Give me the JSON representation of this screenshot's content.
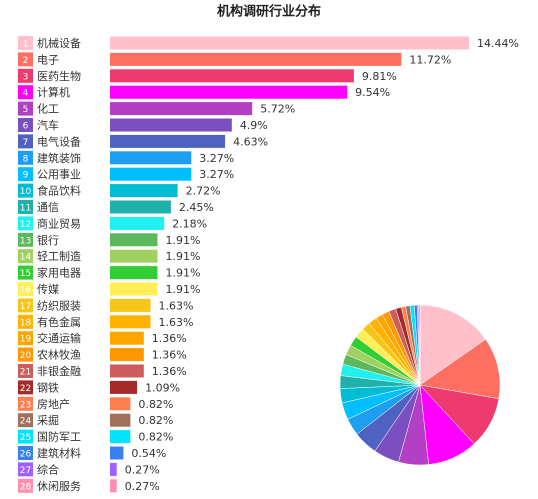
{
  "chart_data": {
    "type": "bar",
    "title": "机构调研行业分布",
    "ranks": [
      1,
      2,
      3,
      4,
      5,
      6,
      7,
      8,
      9,
      10,
      11,
      12,
      13,
      14,
      15,
      16,
      17,
      18,
      19,
      20,
      21,
      22,
      23,
      24,
      25,
      26,
      27,
      28
    ],
    "categories": [
      "机械设备",
      "电子",
      "医药生物",
      "计算机",
      "化工",
      "汽车",
      "电气设备",
      "建筑装饰",
      "公用事业",
      "食品饮料",
      "通信",
      "商业贸易",
      "银行",
      "轻工制造",
      "家用电器",
      "传媒",
      "纺织服装",
      "有色金属",
      "交通运输",
      "农林牧渔",
      "非银金融",
      "钢铁",
      "房地产",
      "采掘",
      "国防军工",
      "建筑材料",
      "综合",
      "休闲服务"
    ],
    "values": [
      14.44,
      11.72,
      9.81,
      9.54,
      5.72,
      4.9,
      4.63,
      3.27,
      3.27,
      2.72,
      2.45,
      2.18,
      1.91,
      1.91,
      1.91,
      1.91,
      1.63,
      1.63,
      1.36,
      1.36,
      1.36,
      1.09,
      0.82,
      0.82,
      0.82,
      0.54,
      0.27,
      0.27
    ],
    "value_labels": [
      "14.44%",
      "11.72%",
      "9.81%",
      "9.54%",
      "5.72%",
      "4.9%",
      "4.63%",
      "3.27%",
      "3.27%",
      "2.72%",
      "2.45%",
      "2.18%",
      "1.91%",
      "1.91%",
      "1.91%",
      "1.91%",
      "1.63%",
      "1.63%",
      "1.36%",
      "1.36%",
      "1.36%",
      "1.09%",
      "0.82%",
      "0.82%",
      "0.82%",
      "0.54%",
      "0.27%",
      "0.27%"
    ],
    "colors": [
      "#ffc0cb",
      "#ff6f61",
      "#ee3a6e",
      "#ff00ff",
      "#b23fc4",
      "#7b4fc0",
      "#4f62c2",
      "#1e9ef0",
      "#00bfff",
      "#00bcd4",
      "#20b2aa",
      "#1ff0f0",
      "#5cb85c",
      "#9fd060",
      "#32cd32",
      "#ffee58",
      "#f5c518",
      "#ffb300",
      "#ffa500",
      "#ff9800",
      "#cd5c5c",
      "#a52a2a",
      "#ff7f50",
      "#a0705a",
      "#00e5ff",
      "#3a80f0",
      "#a060ff",
      "#ff8fb0"
    ],
    "pie": true
  }
}
